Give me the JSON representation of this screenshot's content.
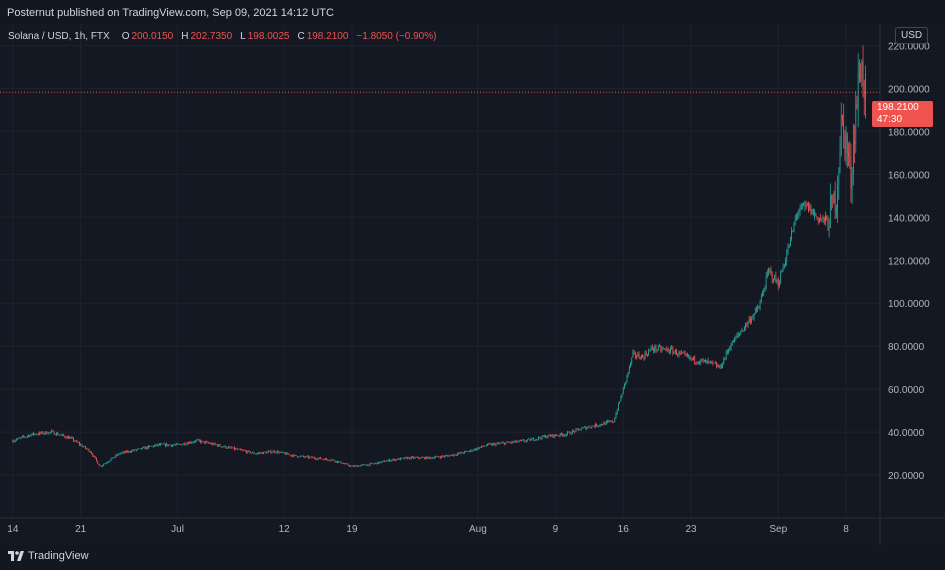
{
  "header": {
    "published_text": "Posternut published on TradingView.com, Sep 09, 2021 14:12 UTC"
  },
  "legend": {
    "symbol": "Solana / USD, 1h, FTX",
    "open_label": "O",
    "open": "200.0150",
    "high_label": "H",
    "high": "202.7350",
    "low_label": "L",
    "low": "198.0025",
    "close_label": "C",
    "close": "198.2100",
    "change": "−1.8050 (−0.90%)"
  },
  "currency_button": "USD",
  "price_tag": {
    "price": "198.2100",
    "countdown": "47:30"
  },
  "footer": {
    "brand": "TradingView"
  },
  "colors": {
    "up": "#26a69a",
    "down": "#ef5350",
    "background": "#131722",
    "grid": "#1e222d",
    "text": "#d1d4dc"
  },
  "chart_data": {
    "type": "line",
    "title": "Solana / USD, 1h, FTX",
    "style": "candlestick",
    "x_ticks": [
      "14",
      "21",
      "Jul",
      "12",
      "19",
      "Aug",
      "9",
      "16",
      "23",
      "Sep",
      "8"
    ],
    "x_tick_days": [
      0,
      7,
      17,
      28,
      35,
      48,
      56,
      63,
      70,
      79,
      86
    ],
    "x_range_days": [
      -0.5,
      89.5
    ],
    "y_ticks": [
      "20.0000",
      "40.0000",
      "60.0000",
      "80.0000",
      "100.0000",
      "120.0000",
      "140.0000",
      "160.0000",
      "180.0000",
      "200.0000",
      "220.0000"
    ],
    "ylim": [
      0,
      230
    ],
    "last_price": 198.21,
    "grid": true,
    "approx_daily_close": {
      "x_days": [
        0,
        2,
        4,
        6,
        8,
        9,
        11,
        13,
        15,
        17,
        19,
        21,
        23,
        25,
        27,
        29,
        31,
        33,
        35,
        37,
        39,
        41,
        43,
        45,
        47,
        49,
        51,
        53,
        55,
        57,
        59,
        61,
        62,
        63,
        64,
        65,
        66,
        68,
        70,
        72,
        73,
        74,
        76,
        77,
        78,
        79,
        80,
        81,
        82,
        83,
        84,
        85,
        85.5,
        86,
        86.5,
        87,
        87.5,
        88
      ],
      "y": [
        36,
        39,
        40,
        37,
        31,
        24,
        30,
        32,
        34,
        34,
        36,
        34,
        32,
        30,
        31,
        29,
        28,
        27,
        24,
        25,
        27,
        28,
        28,
        29,
        31,
        34,
        35,
        36,
        38,
        39,
        42,
        44,
        45,
        60,
        76,
        75,
        79,
        78,
        74,
        72,
        70,
        80,
        92,
        98,
        115,
        109,
        125,
        143,
        145,
        140,
        138,
        150,
        183,
        175,
        158,
        190,
        212,
        198
      ]
    }
  }
}
